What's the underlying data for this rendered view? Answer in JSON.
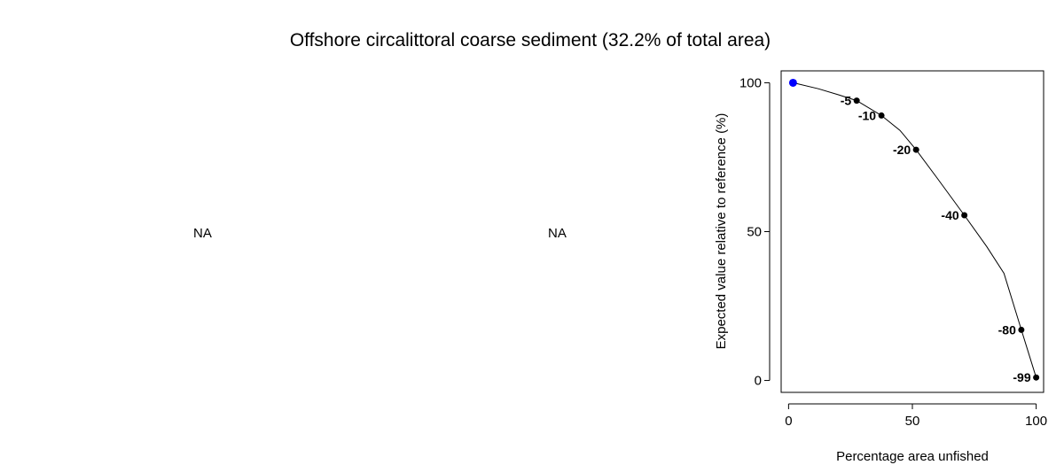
{
  "title": "Offshore circalittoral coarse sediment (32.2% of total area)",
  "panels": {
    "left_placeholder": "NA",
    "middle_placeholder": "NA"
  },
  "chart_data": {
    "type": "line",
    "xlabel": "Percentage area unfished",
    "ylabel": "Expected value relative to reference (%)",
    "xlim": [
      -3,
      103
    ],
    "ylim": [
      -4,
      104
    ],
    "xticks": [
      0,
      50,
      100
    ],
    "yticks": [
      0,
      50,
      100
    ],
    "grid": false,
    "legend": "none",
    "curve": {
      "x": [
        1.8,
        12,
        20,
        27.5,
        37.5,
        45,
        51.5,
        60,
        71,
        80,
        87,
        94,
        100
      ],
      "y": [
        100,
        98,
        96,
        94,
        89,
        84,
        77.5,
        68,
        55.5,
        45,
        36,
        17,
        1
      ]
    },
    "points": [
      {
        "x": 1.8,
        "y": 100,
        "label": "",
        "highlight": true
      },
      {
        "x": 27.5,
        "y": 94,
        "label": "-5",
        "highlight": false
      },
      {
        "x": 37.5,
        "y": 89,
        "label": "-10",
        "highlight": false
      },
      {
        "x": 51.5,
        "y": 77.5,
        "label": "-20",
        "highlight": false
      },
      {
        "x": 71,
        "y": 55.5,
        "label": "-40",
        "highlight": false
      },
      {
        "x": 94,
        "y": 17,
        "label": "-80",
        "highlight": false
      },
      {
        "x": 100,
        "y": 1,
        "label": "-99",
        "highlight": false
      }
    ],
    "colors": {
      "highlight": "#0000ff",
      "points": "#000000",
      "line": "#000000"
    }
  }
}
